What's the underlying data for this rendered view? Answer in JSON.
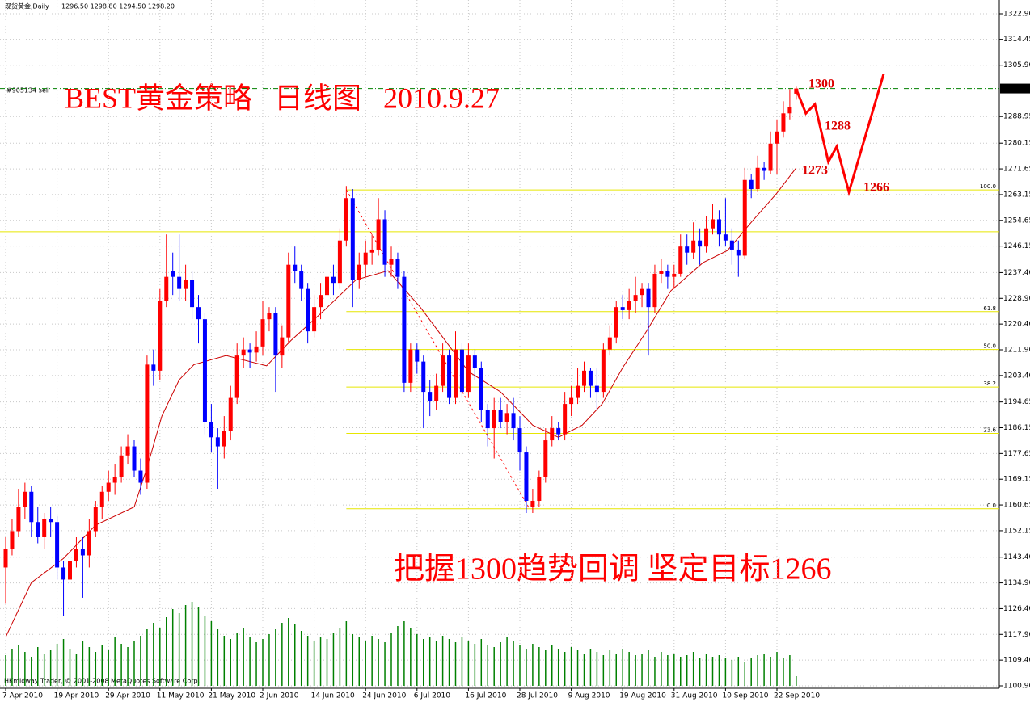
{
  "chart_data": {
    "type": "candlestick",
    "header": "现货黄金,Daily",
    "header_ohlc": "1296.50 1298.80 1294.50 1298.20",
    "title": "BEST黄金策略   日线图   2010.9.27",
    "subtitle": "把握1300趋势回调 坚定目标1266",
    "order_label": "#905134 sell",
    "footer": "HKmidway Trader, © 2001-2008 MetaQuotes Software Corp.",
    "up_color": "#ff0000",
    "down_color": "#0000ff",
    "volume_color": "#008000",
    "ma_color": "#cc0000",
    "grid": true,
    "ylim": [
      1100.9,
      1322.9
    ],
    "yticks": [
      {
        "value": 1322.9,
        "label": "1322.90"
      },
      1314.45,
      {
        "value": 1305.9,
        "label": "1305.90"
      },
      1288.95,
      1280.15,
      1271.65,
      1263.15,
      1254.65,
      1246.15,
      {
        "value": 1237.4,
        "label": "1237.40"
      },
      {
        "value": 1228.9,
        "label": "1228.90"
      },
      {
        "value": 1220.4,
        "label": "1220.40"
      },
      {
        "value": 1211.9,
        "label": "1211.90"
      },
      {
        "value": 1203.4,
        "label": "1203.40"
      },
      1194.65,
      1186.15,
      1177.65,
      1169.15,
      1160.65,
      1152.15,
      {
        "value": 1143.4,
        "label": "1143.40"
      },
      {
        "value": 1134.9,
        "label": "1134.90"
      },
      {
        "value": 1126.4,
        "label": "1126.40"
      },
      {
        "value": 1117.9,
        "label": "1117.90"
      },
      {
        "value": 1109.4,
        "label": "1109.40"
      },
      {
        "value": 1100.9,
        "label": "1100.90"
      }
    ],
    "current_price": {
      "value": 1298.2,
      "label": "1298.20"
    },
    "categories": [
      "7 Apr 2010",
      null,
      null,
      null,
      null,
      null,
      null,
      null,
      "19 Apr 2010",
      null,
      null,
      null,
      null,
      null,
      null,
      null,
      "29 Apr 2010",
      null,
      null,
      null,
      null,
      null,
      null,
      null,
      "11 May 2010",
      null,
      null,
      null,
      null,
      null,
      null,
      null,
      "21 May 2010",
      null,
      null,
      null,
      null,
      null,
      null,
      null,
      "2 Jun 2010",
      null,
      null,
      null,
      null,
      null,
      null,
      null,
      "14 Jun 2010",
      null,
      null,
      null,
      null,
      null,
      null,
      null,
      "24 Jun 2010",
      null,
      null,
      null,
      null,
      null,
      null,
      null,
      "6 Jul 2010",
      null,
      null,
      null,
      null,
      null,
      null,
      null,
      "16 Jul 2010",
      null,
      null,
      null,
      null,
      null,
      null,
      null,
      "28 Jul 2010",
      null,
      null,
      null,
      null,
      null,
      null,
      null,
      "9 Aug 2010",
      null,
      null,
      null,
      null,
      null,
      null,
      null,
      "19 Aug 2010",
      null,
      null,
      null,
      null,
      null,
      null,
      null,
      "31 Aug 2010",
      null,
      null,
      null,
      null,
      null,
      null,
      null,
      "10 Sep 2010",
      null,
      null,
      null,
      null,
      null,
      null,
      null,
      "22 Sep 2010",
      null,
      null,
      null
    ],
    "candles": [
      [
        1140,
        1150,
        1128,
        1146
      ],
      [
        1146,
        1156,
        1144,
        1152
      ],
      [
        1152,
        1166,
        1150,
        1160
      ],
      [
        1160,
        1168,
        1156,
        1165
      ],
      [
        1165,
        1167,
        1150,
        1155
      ],
      [
        1155,
        1160,
        1148,
        1150
      ],
      [
        1150,
        1158,
        1146,
        1156
      ],
      [
        1156,
        1160,
        1150,
        1155
      ],
      [
        1155,
        1157,
        1136,
        1140
      ],
      [
        1140,
        1142,
        1124,
        1136
      ],
      [
        1136,
        1146,
        1134,
        1142
      ],
      [
        1142,
        1150,
        1140,
        1146
      ],
      [
        1146,
        1150,
        1130,
        1144
      ],
      [
        1144,
        1156,
        1140,
        1152
      ],
      [
        1152,
        1162,
        1150,
        1160
      ],
      [
        1160,
        1167,
        1156,
        1165
      ],
      [
        1165,
        1172,
        1162,
        1168
      ],
      [
        1168,
        1174,
        1164,
        1170
      ],
      [
        1170,
        1180,
        1168,
        1177
      ],
      [
        1177,
        1184,
        1174,
        1180
      ],
      [
        1180,
        1182,
        1170,
        1172
      ],
      [
        1172,
        1176,
        1164,
        1168
      ],
      [
        1168,
        1210,
        1166,
        1207
      ],
      [
        1207,
        1212,
        1200,
        1205
      ],
      [
        1205,
        1232,
        1202,
        1228
      ],
      [
        1228,
        1250,
        1226,
        1236
      ],
      [
        1238,
        1244,
        1230,
        1236
      ],
      [
        1236,
        1250,
        1228,
        1232
      ],
      [
        1232,
        1240,
        1228,
        1235
      ],
      [
        1235,
        1238,
        1222,
        1226
      ],
      [
        1226,
        1230,
        1214,
        1222
      ],
      [
        1222,
        1224,
        1184,
        1188
      ],
      [
        1188,
        1194,
        1178,
        1183
      ],
      [
        1183,
        1186,
        1166,
        1180
      ],
      [
        1180,
        1190,
        1176,
        1185
      ],
      [
        1185,
        1200,
        1182,
        1196
      ],
      [
        1196,
        1214,
        1194,
        1210
      ],
      [
        1210,
        1216,
        1206,
        1212
      ],
      [
        1212,
        1214,
        1206,
        1211
      ],
      [
        1211,
        1218,
        1208,
        1213
      ],
      [
        1213,
        1228,
        1210,
        1222
      ],
      [
        1222,
        1226,
        1218,
        1224
      ],
      [
        1224,
        1226,
        1198,
        1210
      ],
      [
        1210,
        1220,
        1206,
        1216
      ],
      [
        1216,
        1244,
        1214,
        1240
      ],
      [
        1240,
        1246,
        1234,
        1238
      ],
      [
        1238,
        1240,
        1228,
        1232
      ],
      [
        1232,
        1234,
        1214,
        1218
      ],
      [
        1218,
        1230,
        1216,
        1226
      ],
      [
        1226,
        1234,
        1222,
        1230
      ],
      [
        1230,
        1240,
        1226,
        1236
      ],
      [
        1236,
        1240,
        1230,
        1234
      ],
      [
        1234,
        1252,
        1232,
        1248
      ],
      [
        1248,
        1266,
        1246,
        1262
      ],
      [
        1262,
        1265,
        1226,
        1235
      ],
      [
        1235,
        1244,
        1232,
        1240
      ],
      [
        1240,
        1248,
        1236,
        1244
      ],
      [
        1244,
        1250,
        1240,
        1245
      ],
      [
        1245,
        1262,
        1243,
        1255
      ],
      [
        1255,
        1258,
        1236,
        1240
      ],
      [
        1240,
        1246,
        1236,
        1242
      ],
      [
        1242,
        1244,
        1232,
        1236
      ],
      [
        1236,
        1238,
        1198,
        1201
      ],
      [
        1201,
        1214,
        1198,
        1212
      ],
      [
        1212,
        1214,
        1204,
        1208
      ],
      [
        1208,
        1210,
        1186,
        1198
      ],
      [
        1198,
        1202,
        1190,
        1195
      ],
      [
        1195,
        1204,
        1192,
        1200
      ],
      [
        1200,
        1214,
        1198,
        1210
      ],
      [
        1210,
        1212,
        1194,
        1196
      ],
      [
        1196,
        1218,
        1194,
        1212
      ],
      [
        1212,
        1214,
        1196,
        1198
      ],
      [
        1198,
        1214,
        1196,
        1210
      ],
      [
        1210,
        1212,
        1202,
        1206
      ],
      [
        1206,
        1208,
        1188,
        1192
      ],
      [
        1192,
        1194,
        1180,
        1186
      ],
      [
        1186,
        1196,
        1176,
        1192
      ],
      [
        1192,
        1196,
        1186,
        1188
      ],
      [
        1188,
        1194,
        1184,
        1191
      ],
      [
        1191,
        1196,
        1182,
        1186
      ],
      [
        1186,
        1190,
        1172,
        1178
      ],
      [
        1178,
        1180,
        1158,
        1162
      ],
      [
        1160,
        1166,
        1158,
        1162
      ],
      [
        1162,
        1172,
        1160,
        1170
      ],
      [
        1170,
        1186,
        1168,
        1182
      ],
      [
        1182,
        1190,
        1180,
        1186
      ],
      [
        1186,
        1188,
        1182,
        1184
      ],
      [
        1184,
        1198,
        1182,
        1194
      ],
      [
        1194,
        1200,
        1190,
        1196
      ],
      [
        1196,
        1206,
        1194,
        1200
      ],
      [
        1200,
        1208,
        1198,
        1205
      ],
      [
        1205,
        1206,
        1196,
        1200
      ],
      [
        1200,
        1206,
        1192,
        1198
      ],
      [
        1198,
        1214,
        1196,
        1212
      ],
      [
        1212,
        1220,
        1210,
        1216
      ],
      [
        1216,
        1228,
        1214,
        1226
      ],
      [
        1226,
        1230,
        1222,
        1225
      ],
      [
        1225,
        1232,
        1222,
        1228
      ],
      [
        1228,
        1236,
        1224,
        1230
      ],
      [
        1230,
        1234,
        1226,
        1232
      ],
      [
        1232,
        1234,
        1210,
        1226
      ],
      [
        1226,
        1240,
        1224,
        1237
      ],
      [
        1237,
        1242,
        1234,
        1238
      ],
      [
        1238,
        1240,
        1232,
        1236
      ],
      [
        1236,
        1240,
        1232,
        1237
      ],
      [
        1237,
        1250,
        1236,
        1246
      ],
      [
        1246,
        1250,
        1240,
        1244
      ],
      [
        1244,
        1254,
        1242,
        1248
      ],
      [
        1248,
        1252,
        1240,
        1246
      ],
      [
        1246,
        1256,
        1244,
        1252
      ],
      [
        1252,
        1260,
        1250,
        1255
      ],
      [
        1255,
        1258,
        1246,
        1250
      ],
      [
        1250,
        1262,
        1246,
        1248
      ],
      [
        1248,
        1252,
        1240,
        1245
      ],
      [
        1245,
        1248,
        1236,
        1243
      ],
      [
        1243,
        1272,
        1242,
        1268
      ],
      [
        1268,
        1270,
        1262,
        1265
      ],
      [
        1265,
        1276,
        1264,
        1272
      ],
      [
        1272,
        1274,
        1268,
        1271
      ],
      [
        1271,
        1284,
        1270,
        1280
      ],
      [
        1280,
        1288,
        1270,
        1284
      ],
      [
        1284,
        1294,
        1282,
        1290
      ],
      [
        1290,
        1298,
        1288,
        1292
      ],
      [
        1296.5,
        1298.8,
        1294.5,
        1298.2
      ]
    ],
    "volume": [
      38,
      45,
      50,
      42,
      36,
      48,
      40,
      44,
      52,
      58,
      46,
      40,
      55,
      48,
      42,
      50,
      44,
      60,
      52,
      48,
      56,
      62,
      70,
      78,
      72,
      85,
      95,
      90,
      100,
      104,
      98,
      86,
      80,
      70,
      62,
      58,
      66,
      72,
      60,
      54,
      58,
      64,
      70,
      78,
      84,
      76,
      68,
      62,
      56,
      60,
      58,
      66,
      72,
      80,
      64,
      60,
      56,
      62,
      58,
      54,
      66,
      74,
      80,
      72,
      64,
      58,
      60,
      56,
      62,
      58,
      54,
      60,
      56,
      52,
      58,
      50,
      48,
      54,
      60,
      56,
      50,
      46,
      52,
      48,
      44,
      50,
      46,
      42,
      48,
      44,
      40,
      46,
      42,
      38,
      44,
      40,
      46,
      42,
      38,
      40,
      44,
      36,
      42,
      38,
      40,
      36,
      38,
      42,
      34,
      40,
      36,
      38,
      34,
      32,
      36,
      30,
      34,
      38,
      40,
      36,
      42,
      34,
      38,
      12
    ],
    "ma": {
      "x": [
        0,
        4,
        9,
        14,
        20,
        22,
        24.3,
        27,
        29.3,
        34.3,
        40.6,
        44.4,
        49.4,
        54.5,
        59.5,
        64.5,
        72,
        77,
        82,
        86,
        89.7,
        92.8,
        96,
        99.7,
        103.5,
        108.5,
        112.3,
        116,
        119.9,
        123
      ],
      "values": [
        1117,
        1135,
        1143,
        1154,
        1160,
        1173,
        1190,
        1202,
        1207,
        1210,
        1206.6,
        1215,
        1224.6,
        1235,
        1238,
        1226,
        1204.7,
        1198,
        1187,
        1183,
        1187,
        1194,
        1206,
        1218,
        1231.4,
        1240.7,
        1244.7,
        1254,
        1263.4,
        1272
      ]
    },
    "fib": {
      "x_start": 53,
      "levels": [
        1159.4,
        1184.3,
        1199.6,
        1212,
        1224.5,
        1264.7
      ],
      "labels": [
        "0.0",
        "23.6",
        "38.2",
        "50.0",
        "61.8",
        "100.0"
      ],
      "color": "#e6e600"
    },
    "hline": 1250.9,
    "trendline": {
      "x": [
        53,
        81.5
      ],
      "values": [
        1264.7,
        1159.4
      ]
    },
    "projection": {
      "x": [
        123,
        124.5,
        125.9,
        128,
        129.3,
        131.2,
        136.6
      ],
      "values": [
        1298,
        1290,
        1293,
        1274,
        1279,
        1264,
        1303
      ],
      "color": "#ff0000"
    },
    "targets": [
      1300,
      1288,
      1273,
      1266
    ]
  }
}
